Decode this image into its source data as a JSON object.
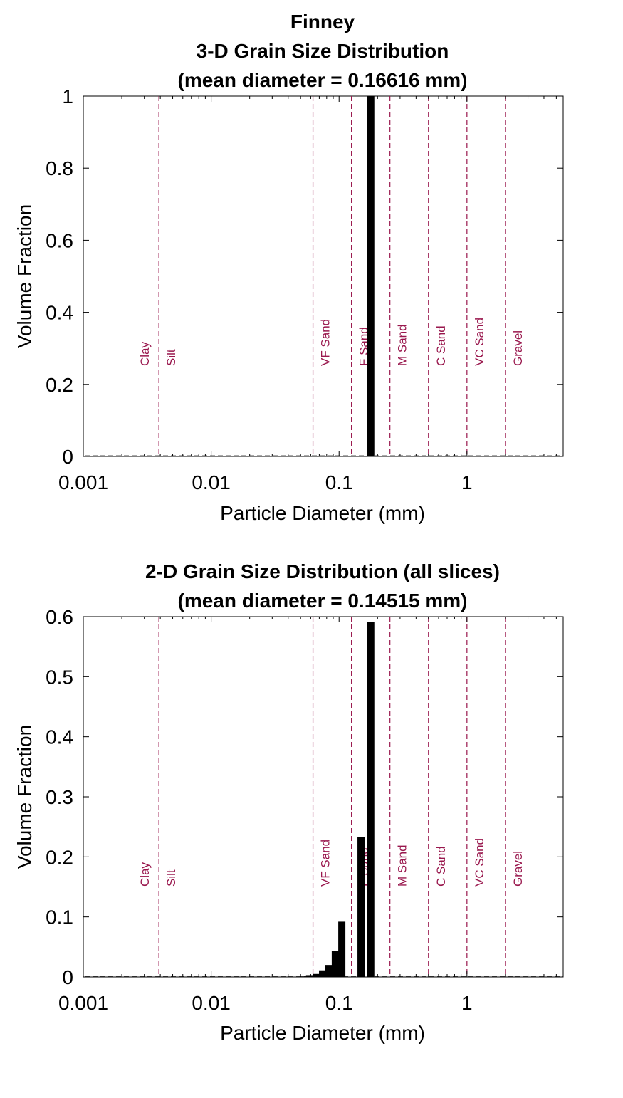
{
  "figure": {
    "sample_name": "Finney"
  },
  "chart_data": [
    {
      "type": "bar",
      "title_lines": [
        "3-D Grain Size Distribution",
        "(mean diameter = 0.16616 mm)"
      ],
      "xlabel": "Particle Diameter (mm)",
      "ylabel": "Volume Fraction",
      "xscale": "log",
      "xlim": [
        0.001,
        5.657
      ],
      "ylim": [
        0,
        1
      ],
      "xticks": [
        0.001,
        0.01,
        0.1,
        1
      ],
      "xtick_labels": [
        "0.001",
        "0.01",
        "0.1",
        "1"
      ],
      "yticks": [
        0,
        0.2,
        0.4,
        0.6,
        0.8,
        1
      ],
      "ytick_labels": [
        "0",
        "0.2",
        "0.4",
        "0.6",
        "0.8",
        "1"
      ],
      "bars": [
        {
          "x": 0.177,
          "value": 1.0
        }
      ],
      "class_boundaries": [
        {
          "x": 0.0039,
          "left_label": "Clay",
          "right_label": "Silt"
        },
        {
          "x": 0.0625,
          "left_label": "",
          "right_label": "VF Sand"
        },
        {
          "x": 0.125,
          "left_label": "",
          "right_label": "F Sand"
        },
        {
          "x": 0.25,
          "left_label": "",
          "right_label": "M Sand"
        },
        {
          "x": 0.5,
          "left_label": "",
          "right_label": "C Sand"
        },
        {
          "x": 1.0,
          "left_label": "",
          "right_label": "VC Sand"
        },
        {
          "x": 2.0,
          "left_label": "",
          "right_label": "Gravel"
        }
      ]
    },
    {
      "type": "bar",
      "title_lines": [
        "2-D Grain Size Distribution (all slices)",
        "(mean diameter = 0.14515 mm)"
      ],
      "xlabel": "Particle Diameter (mm)",
      "ylabel": "Volume Fraction",
      "xscale": "log",
      "xlim": [
        0.001,
        5.657
      ],
      "ylim": [
        0,
        0.6
      ],
      "xticks": [
        0.001,
        0.01,
        0.1,
        1
      ],
      "xtick_labels": [
        "0.001",
        "0.01",
        "0.1",
        "1"
      ],
      "yticks": [
        0,
        0.1,
        0.2,
        0.3,
        0.4,
        0.5,
        0.6
      ],
      "ytick_labels": [
        "0",
        "0.1",
        "0.2",
        "0.3",
        "0.4",
        "0.5",
        "0.6"
      ],
      "bars": [
        {
          "x": 0.0525,
          "value": 0.001
        },
        {
          "x": 0.0588,
          "value": 0.003
        },
        {
          "x": 0.0663,
          "value": 0.005
        },
        {
          "x": 0.0743,
          "value": 0.011
        },
        {
          "x": 0.0833,
          "value": 0.02
        },
        {
          "x": 0.0934,
          "value": 0.043
        },
        {
          "x": 0.1051,
          "value": 0.092
        },
        {
          "x": 0.1485,
          "value": 0.233
        },
        {
          "x": 0.177,
          "value": 0.591
        }
      ],
      "class_boundaries": [
        {
          "x": 0.0039,
          "left_label": "Clay",
          "right_label": "Silt"
        },
        {
          "x": 0.0625,
          "left_label": "",
          "right_label": "VF Sand"
        },
        {
          "x": 0.125,
          "left_label": "",
          "right_label": "F Sand"
        },
        {
          "x": 0.25,
          "left_label": "",
          "right_label": "M Sand"
        },
        {
          "x": 0.5,
          "left_label": "",
          "right_label": "C Sand"
        },
        {
          "x": 1.0,
          "left_label": "",
          "right_label": "VC Sand"
        },
        {
          "x": 2.0,
          "left_label": "",
          "right_label": "Gravel"
        }
      ]
    }
  ]
}
